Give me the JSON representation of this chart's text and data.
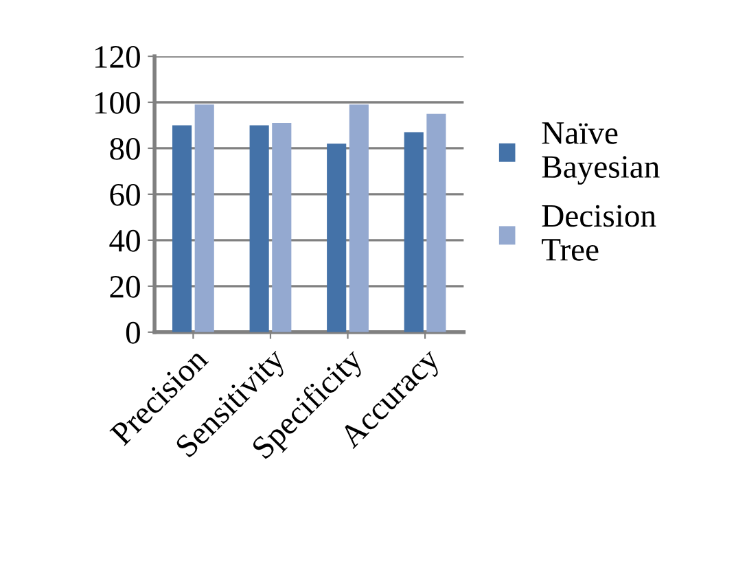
{
  "chart_data": {
    "type": "bar",
    "categories": [
      "Precision",
      "Sensitivity",
      "Specificity",
      "Accuracy"
    ],
    "series": [
      {
        "name": "Naïve Bayesian",
        "color": "#4472a8",
        "values": [
          90,
          90,
          82,
          87
        ]
      },
      {
        "name": "Decision Tree",
        "color": "#94a9d0",
        "values": [
          99,
          91,
          99,
          95
        ]
      }
    ],
    "ylim": [
      0,
      120
    ],
    "yticks": [
      0,
      20,
      40,
      60,
      80,
      100,
      120
    ],
    "grid": "y",
    "legend": "right"
  }
}
